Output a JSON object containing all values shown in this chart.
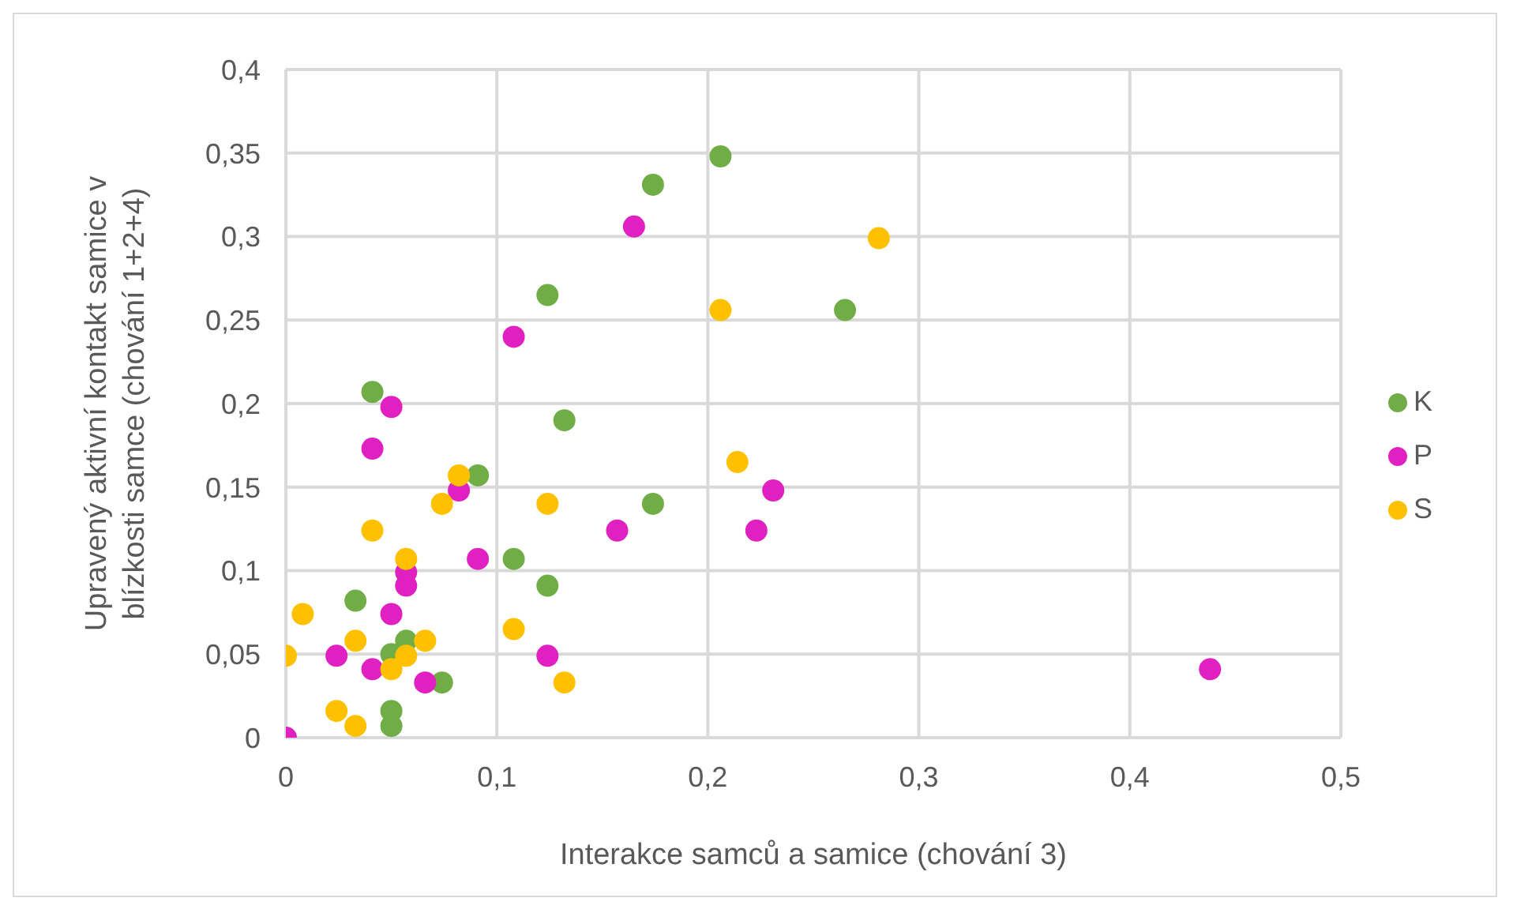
{
  "chart_data": {
    "type": "scatter",
    "xlabel": "Interakce samců a samice (chování 3)",
    "ylabel": "Upravený aktivní kontakt samice v blízkosti samce (chování 1+2+4)",
    "xlim": [
      0,
      0.5
    ],
    "xticks": [
      {
        "value": 0,
        "label": "0"
      },
      {
        "value": 0.1,
        "label": "0,1"
      },
      {
        "value": 0.2,
        "label": "0,2"
      },
      {
        "value": 0.3,
        "label": "0,3"
      },
      {
        "value": 0.4,
        "label": "0,4"
      },
      {
        "value": 0.5,
        "label": "0,5"
      }
    ],
    "ylim": [
      0,
      0.4
    ],
    "yticks": [
      {
        "value": 0,
        "label": "0"
      },
      {
        "value": 0.05,
        "label": "0,05"
      },
      {
        "value": 0.1,
        "label": "0,1"
      },
      {
        "value": 0.15,
        "label": "0,15"
      },
      {
        "value": 0.2,
        "label": "0,2"
      },
      {
        "value": 0.25,
        "label": "0,25"
      },
      {
        "value": 0.3,
        "label": "0,3"
      },
      {
        "value": 0.35,
        "label": "0,35"
      },
      {
        "value": 0.4,
        "label": "0,4"
      }
    ],
    "grid": true,
    "legend": "right",
    "marker": "circle",
    "series": [
      {
        "name": "K",
        "color": "#70ad47",
        "x": [
          0.206,
          0.174,
          0.124,
          0.265,
          0.041,
          0.132,
          0.091,
          0.108,
          0.124,
          0.033,
          0.057,
          0.05,
          0.074,
          0.05,
          0.05,
          0.174
        ],
        "values": [
          0.348,
          0.331,
          0.265,
          0.256,
          0.207,
          0.19,
          0.157,
          0.107,
          0.091,
          0.082,
          0.058,
          0.05,
          0.033,
          0.016,
          0.007,
          0.14
        ]
      },
      {
        "name": "P",
        "color": "#e020c0",
        "x": [
          0.165,
          0.108,
          0.05,
          0.041,
          0.082,
          0.091,
          0.057,
          0.057,
          0.05,
          0.024,
          0.124,
          0.041,
          0.066,
          0,
          0.231,
          0.157,
          0.223,
          0.438
        ],
        "values": [
          0.306,
          0.24,
          0.198,
          0.173,
          0.148,
          0.107,
          0.099,
          0.091,
          0.074,
          0.049,
          0.049,
          0.041,
          0.033,
          0,
          0.148,
          0.124,
          0.124,
          0.041
        ]
      },
      {
        "name": "S",
        "color": "#ffc000",
        "x": [
          0.281,
          0.206,
          0.082,
          0.074,
          0.124,
          0.041,
          0.057,
          0.008,
          0.108,
          0.033,
          0.066,
          0,
          0.057,
          0.05,
          0.132,
          0.024,
          0.033,
          0.214
        ],
        "values": [
          0.299,
          0.256,
          0.157,
          0.14,
          0.14,
          0.124,
          0.107,
          0.074,
          0.065,
          0.058,
          0.058,
          0.049,
          0.049,
          0.041,
          0.033,
          0.016,
          0.007,
          0.165
        ]
      }
    ]
  }
}
